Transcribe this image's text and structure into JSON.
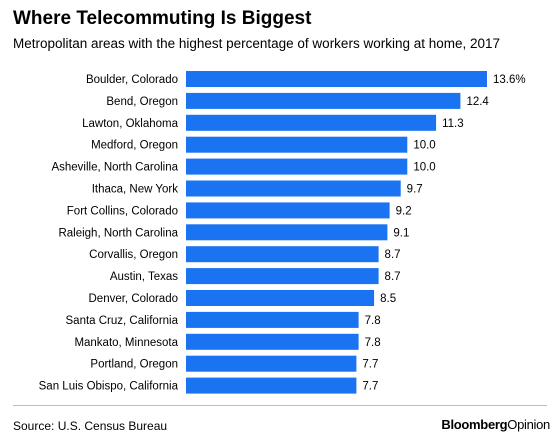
{
  "header": {
    "title": "Where Telecommuting Is Biggest",
    "subtitle": "Metropolitan areas with the highest percentage of workers working at home, 2017"
  },
  "footer": {
    "source": "Source: U.S. Census Bureau",
    "brand_bold": "Bloomberg",
    "brand_regular": "Opinion"
  },
  "colors": {
    "bar": "#1a73f0"
  },
  "chart_data": {
    "type": "bar",
    "orientation": "horizontal",
    "categories": [
      "Boulder, Colorado",
      "Bend, Oregon",
      "Lawton, Oklahoma",
      "Medford, Oregon",
      "Asheville, North Carolina",
      "Ithaca, New York",
      "Fort Collins, Colorado",
      "Raleigh, North Carolina",
      "Corvallis, Oregon",
      "Austin, Texas",
      "Denver, Colorado",
      "Santa Cruz, California",
      "Mankato, Minnesota",
      "Portland, Oregon",
      "San Luis Obispo, California"
    ],
    "values": [
      13.6,
      12.4,
      11.3,
      10.0,
      10.0,
      9.7,
      9.2,
      9.1,
      8.7,
      8.7,
      8.5,
      7.8,
      7.8,
      7.7,
      7.7
    ],
    "value_labels": [
      "13.6%",
      "12.4",
      "11.3",
      "10.0",
      "10.0",
      "9.7",
      "9.2",
      "9.1",
      "8.7",
      "8.7",
      "8.5",
      "7.8",
      "7.8",
      "7.7",
      "7.7"
    ],
    "xlim": [
      0,
      13.6
    ],
    "grid": false,
    "legend": "none"
  }
}
